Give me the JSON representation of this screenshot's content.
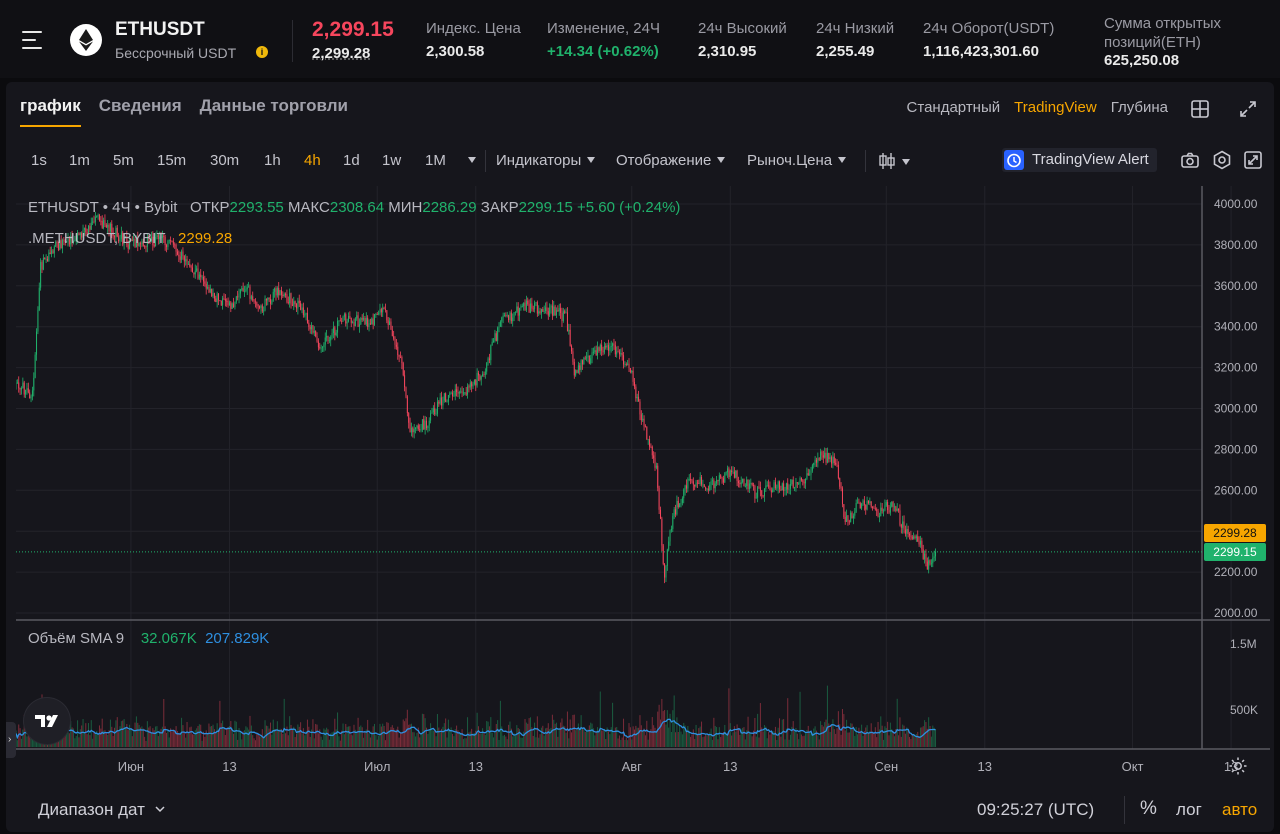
{
  "header": {
    "symbol": "ETHUSDT",
    "contract_type": "Бессрочный USDT",
    "info_icon": "info-icon",
    "last_price": "2,299.15",
    "mark_price": "2,299.28",
    "stats": [
      {
        "label": "Индекс. Цена",
        "value": "2,300.58",
        "color": "neutral"
      },
      {
        "label": "Изменение, 24Ч",
        "value": "+14.34 (+0.62%)",
        "color": "green"
      },
      {
        "label": "24ч Высокий",
        "value": "2,310.95",
        "color": "neutral"
      },
      {
        "label": "24ч Низкий",
        "value": "2,255.49",
        "color": "neutral"
      },
      {
        "label": "24ч Оборот(USDT)",
        "value": "1,116,423,301.60",
        "color": "neutral"
      }
    ],
    "open_interest_label": "Сумма открытых позиций(ETH)",
    "open_interest_value": "625,250.08"
  },
  "tabs": [
    "график",
    "Сведения",
    "Данные торговли"
  ],
  "active_tab": 0,
  "views": [
    "Стандартный",
    "TradingView",
    "Глубина"
  ],
  "active_view": 1,
  "intervals": [
    "1s",
    "1m",
    "5m",
    "15m",
    "30m",
    "1h",
    "4h",
    "1d",
    "1w",
    "1M"
  ],
  "active_interval": "4h",
  "toolbar": {
    "indicators": "Индикаторы",
    "display": "Отображение",
    "price_type": "Рыноч.Цена",
    "alert": "TradingView Alert"
  },
  "legend": {
    "series": "ETHUSDT",
    "timeframe": "4Ч",
    "exchange": "Bybit",
    "open_label": "ОТКР",
    "open": "2293.55",
    "high_label": "МАКС",
    "high": "2308.64",
    "low_label": "МИН",
    "low": "2286.29",
    "close_label": "ЗАКР",
    "close": "2299.15",
    "change": "+5.60 (+0.24%)",
    "mark_series": ".METHUSDT, BYBIT",
    "mark_value": "2299.28",
    "volume_label": "Объём SMA 9",
    "volume_value": "32.067K",
    "sma_value": "207.829K"
  },
  "colors": {
    "up": "#20b26c",
    "down": "#f6465d",
    "accent": "#f7a600",
    "sma": "#2e8fe0",
    "mark_tag": "#f7a600"
  },
  "chart_data": {
    "type": "candlestick",
    "symbol": "ETHUSDT",
    "interval": "4h",
    "y_ticks": [
      "4000.00",
      "3800.00",
      "3600.00",
      "3400.00",
      "3200.00",
      "3000.00",
      "2800.00",
      "2600.00",
      "2400.00",
      "2200.00",
      "2000.00"
    ],
    "ylim": [
      2000,
      4000
    ],
    "volume_ticks": [
      "1.5M",
      "500K"
    ],
    "x_ticks": [
      "Июн",
      "13",
      "Июл",
      "13",
      "Авг",
      "13",
      "Сен",
      "13",
      "Окт",
      "13"
    ],
    "last_close": 2299.15,
    "mark_price": 2299.28,
    "close_path": [
      {
        "date": "2024-05-18",
        "close": 3120
      },
      {
        "date": "2024-05-20",
        "close": 3070
      },
      {
        "date": "2024-05-21",
        "close": 3700
      },
      {
        "date": "2024-05-23",
        "close": 3800
      },
      {
        "date": "2024-05-26",
        "close": 3860
      },
      {
        "date": "2024-05-28",
        "close": 3920
      },
      {
        "date": "2024-06-01",
        "close": 3800
      },
      {
        "date": "2024-06-05",
        "close": 3830
      },
      {
        "date": "2024-06-08",
        "close": 3720
      },
      {
        "date": "2024-06-11",
        "close": 3560
      },
      {
        "date": "2024-06-13",
        "close": 3500
      },
      {
        "date": "2024-06-15",
        "close": 3580
      },
      {
        "date": "2024-06-17",
        "close": 3500
      },
      {
        "date": "2024-06-19",
        "close": 3580
      },
      {
        "date": "2024-06-22",
        "close": 3480
      },
      {
        "date": "2024-06-24",
        "close": 3300
      },
      {
        "date": "2024-06-27",
        "close": 3440
      },
      {
        "date": "2024-06-30",
        "close": 3420
      },
      {
        "date": "2024-07-02",
        "close": 3480
      },
      {
        "date": "2024-07-04",
        "close": 3200
      },
      {
        "date": "2024-07-05",
        "close": 2880
      },
      {
        "date": "2024-07-07",
        "close": 2930
      },
      {
        "date": "2024-07-09",
        "close": 3050
      },
      {
        "date": "2024-07-12",
        "close": 3100
      },
      {
        "date": "2024-07-14",
        "close": 3180
      },
      {
        "date": "2024-07-16",
        "close": 3420
      },
      {
        "date": "2024-07-19",
        "close": 3500
      },
      {
        "date": "2024-07-22",
        "close": 3480
      },
      {
        "date": "2024-07-24",
        "close": 3450
      },
      {
        "date": "2024-07-25",
        "close": 3180
      },
      {
        "date": "2024-07-27",
        "close": 3250
      },
      {
        "date": "2024-07-29",
        "close": 3320
      },
      {
        "date": "2024-08-01",
        "close": 3180
      },
      {
        "date": "2024-08-02",
        "close": 2980
      },
      {
        "date": "2024-08-04",
        "close": 2700
      },
      {
        "date": "2024-08-05",
        "close": 2180
      },
      {
        "date": "2024-08-06",
        "close": 2480
      },
      {
        "date": "2024-08-08",
        "close": 2650
      },
      {
        "date": "2024-08-11",
        "close": 2620
      },
      {
        "date": "2024-08-13",
        "close": 2700
      },
      {
        "date": "2024-08-16",
        "close": 2590
      },
      {
        "date": "2024-08-19",
        "close": 2620
      },
      {
        "date": "2024-08-22",
        "close": 2640
      },
      {
        "date": "2024-08-24",
        "close": 2780
      },
      {
        "date": "2024-08-26",
        "close": 2730
      },
      {
        "date": "2024-08-27",
        "close": 2450
      },
      {
        "date": "2024-08-29",
        "close": 2540
      },
      {
        "date": "2024-08-31",
        "close": 2500
      },
      {
        "date": "2024-09-02",
        "close": 2530
      },
      {
        "date": "2024-09-03",
        "close": 2420
      },
      {
        "date": "2024-09-05",
        "close": 2360
      },
      {
        "date": "2024-09-06",
        "close": 2220
      },
      {
        "date": "2024-09-07",
        "close": 2299.15
      }
    ]
  },
  "bottom": {
    "range": "Диапазон дат",
    "clock": "09:25:27 (UTC)",
    "percent": "%",
    "log": "лог",
    "auto": "авто"
  }
}
